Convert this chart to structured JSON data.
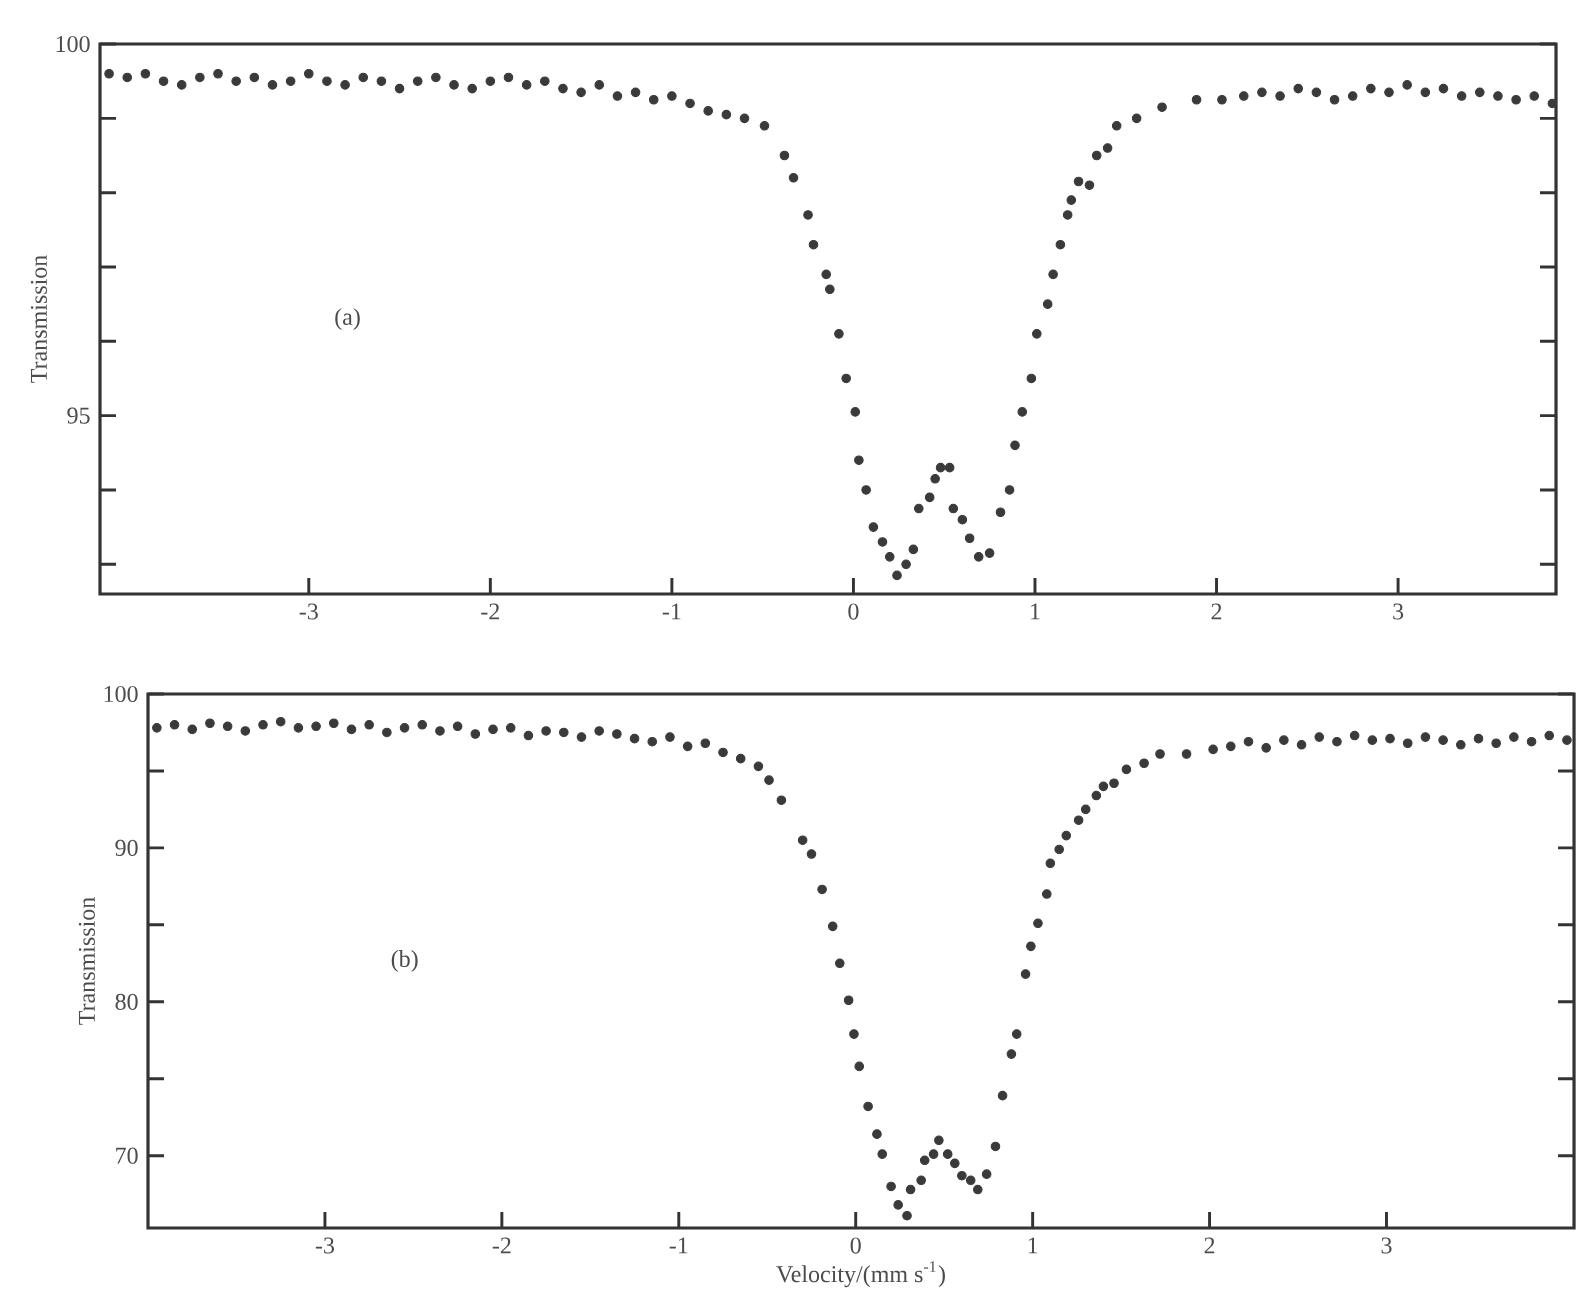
{
  "chart_data": [
    {
      "type": "scatter",
      "ylabel": "Transmission",
      "annotations": [
        "(a)"
      ],
      "xlim": [
        -4.15,
        3.87
      ],
      "ylim": [
        92.6,
        100
      ],
      "xticks": [
        -3,
        -2,
        -1,
        0,
        1,
        2,
        3
      ],
      "yticks": [
        {
          "value": 93,
          "label": null
        },
        {
          "value": 94,
          "label": null
        },
        95,
        {
          "value": 96,
          "label": null
        },
        {
          "value": 97,
          "label": null
        },
        {
          "value": 98,
          "label": null
        },
        {
          "value": 99,
          "label": null
        },
        100
      ],
      "series": [
        {
          "color": "#3a3a3a",
          "x": [
            -4.1,
            -4.0,
            -3.9,
            -3.8,
            -3.7,
            -3.6,
            -3.5,
            -3.4,
            -3.3,
            -3.2,
            -3.1,
            -3.0,
            -2.9,
            -2.8,
            -2.7,
            -2.6,
            -2.5,
            -2.4,
            -2.3,
            -2.2,
            -2.1,
            -2.0,
            -1.9,
            -1.8,
            -1.7,
            -1.6,
            -1.5,
            -1.4,
            -1.3,
            -1.2,
            -1.1,
            -1.0,
            -0.9,
            -0.8,
            -0.7,
            -0.6,
            -0.49,
            -0.38,
            -0.33,
            -0.25,
            -0.22,
            -0.15,
            -0.13,
            -0.08,
            -0.04,
            0.01,
            0.03,
            0.07,
            0.11,
            0.16,
            0.2,
            0.24,
            0.29,
            0.33,
            0.36,
            0.42,
            0.45,
            0.48,
            0.53,
            0.55,
            0.6,
            0.64,
            0.69,
            0.75,
            0.81,
            0.86,
            0.89,
            0.93,
            0.98,
            1.01,
            1.07,
            1.1,
            1.14,
            1.18,
            1.2,
            1.24,
            1.3,
            1.34,
            1.4,
            1.45,
            1.56,
            1.7,
            1.89,
            2.03,
            2.15,
            2.25,
            2.35,
            2.45,
            2.55,
            2.65,
            2.75,
            2.85,
            2.95,
            3.05,
            3.15,
            3.25,
            3.35,
            3.45,
            3.55,
            3.65,
            3.75,
            3.85
          ],
          "values": [
            99.6,
            99.55,
            99.6,
            99.5,
            99.45,
            99.55,
            99.6,
            99.5,
            99.55,
            99.45,
            99.5,
            99.6,
            99.5,
            99.45,
            99.55,
            99.5,
            99.4,
            99.5,
            99.55,
            99.45,
            99.4,
            99.5,
            99.55,
            99.45,
            99.5,
            99.4,
            99.35,
            99.45,
            99.3,
            99.35,
            99.25,
            99.3,
            99.2,
            99.1,
            99.05,
            99.0,
            98.9,
            98.5,
            98.2,
            97.7,
            97.3,
            96.9,
            96.7,
            96.1,
            95.5,
            95.05,
            94.4,
            94.0,
            93.5,
            93.3,
            93.1,
            92.85,
            93.0,
            93.2,
            93.75,
            93.9,
            94.15,
            94.3,
            94.3,
            93.75,
            93.6,
            93.35,
            93.1,
            93.15,
            93.7,
            94.0,
            94.6,
            95.05,
            95.5,
            96.1,
            96.5,
            96.9,
            97.3,
            97.7,
            97.9,
            98.15,
            98.1,
            98.5,
            98.6,
            98.9,
            99.0,
            99.15,
            99.25,
            99.25,
            99.3,
            99.35,
            99.3,
            99.4,
            99.35,
            99.25,
            99.3,
            99.4,
            99.35,
            99.45,
            99.35,
            99.4,
            99.3,
            99.35,
            99.3,
            99.25,
            99.3,
            99.2
          ]
        }
      ]
    },
    {
      "type": "scatter",
      "ylabel": "Transmission",
      "xlabel": "Velocity/(mm s$^{-1}$)",
      "annotations": [
        "(b)"
      ],
      "xlim": [
        -4.0,
        4.06
      ],
      "ylim": [
        65.3,
        100
      ],
      "xticks": [
        -3,
        -2,
        -1,
        0,
        1,
        2,
        3
      ],
      "yticks": [
        70,
        {
          "value": 75,
          "label": null
        },
        80,
        {
          "value": 85,
          "label": null
        },
        90,
        {
          "value": 95,
          "label": null
        },
        100
      ],
      "series": [
        {
          "color": "#3a3a3a",
          "x": [
            -3.95,
            -3.85,
            -3.75,
            -3.65,
            -3.55,
            -3.45,
            -3.35,
            -3.25,
            -3.15,
            -3.05,
            -2.95,
            -2.85,
            -2.75,
            -2.65,
            -2.55,
            -2.45,
            -2.35,
            -2.25,
            -2.15,
            -2.05,
            -1.95,
            -1.85,
            -1.75,
            -1.65,
            -1.55,
            -1.45,
            -1.35,
            -1.25,
            -1.15,
            -1.05,
            -0.95,
            -0.85,
            -0.75,
            -0.65,
            -0.55,
            -0.49,
            -0.42,
            -0.3,
            -0.25,
            -0.19,
            -0.13,
            -0.09,
            -0.04,
            -0.01,
            0.02,
            0.07,
            0.12,
            0.15,
            0.2,
            0.24,
            0.29,
            0.31,
            0.37,
            0.39,
            0.44,
            0.47,
            0.52,
            0.56,
            0.6,
            0.65,
            0.69,
            0.74,
            0.79,
            0.83,
            0.88,
            0.91,
            0.96,
            0.99,
            1.03,
            1.08,
            1.1,
            1.15,
            1.19,
            1.26,
            1.3,
            1.36,
            1.4,
            1.46,
            1.53,
            1.63,
            1.72,
            1.87,
            2.02,
            2.12,
            2.22,
            2.32,
            2.42,
            2.52,
            2.62,
            2.72,
            2.82,
            2.92,
            3.02,
            3.12,
            3.22,
            3.32,
            3.42,
            3.52,
            3.62,
            3.72,
            3.82,
            3.92,
            4.02
          ],
          "values": [
            97.8,
            98.0,
            97.7,
            98.1,
            97.9,
            97.6,
            98.0,
            98.2,
            97.8,
            97.9,
            98.1,
            97.7,
            98.0,
            97.5,
            97.8,
            98.0,
            97.6,
            97.9,
            97.4,
            97.7,
            97.8,
            97.3,
            97.6,
            97.5,
            97.2,
            97.6,
            97.4,
            97.1,
            96.9,
            97.2,
            96.6,
            96.8,
            96.2,
            95.8,
            95.3,
            94.4,
            93.1,
            90.5,
            89.6,
            87.3,
            84.9,
            82.5,
            80.1,
            77.9,
            75.8,
            73.2,
            71.4,
            70.1,
            68.0,
            66.8,
            66.1,
            67.8,
            68.4,
            69.7,
            70.1,
            71.0,
            70.1,
            69.5,
            68.7,
            68.4,
            67.8,
            68.8,
            70.6,
            73.9,
            76.6,
            77.9,
            81.8,
            83.6,
            85.1,
            87.0,
            89.0,
            89.9,
            90.8,
            91.8,
            92.5,
            93.4,
            94.0,
            94.2,
            95.1,
            95.5,
            96.1,
            96.1,
            96.4,
            96.6,
            96.9,
            96.5,
            97.0,
            96.7,
            97.2,
            96.9,
            97.3,
            97.0,
            97.1,
            96.8,
            97.2,
            97.0,
            96.7,
            97.1,
            96.8,
            97.2,
            96.9,
            97.3,
            97.0
          ]
        }
      ]
    }
  ]
}
